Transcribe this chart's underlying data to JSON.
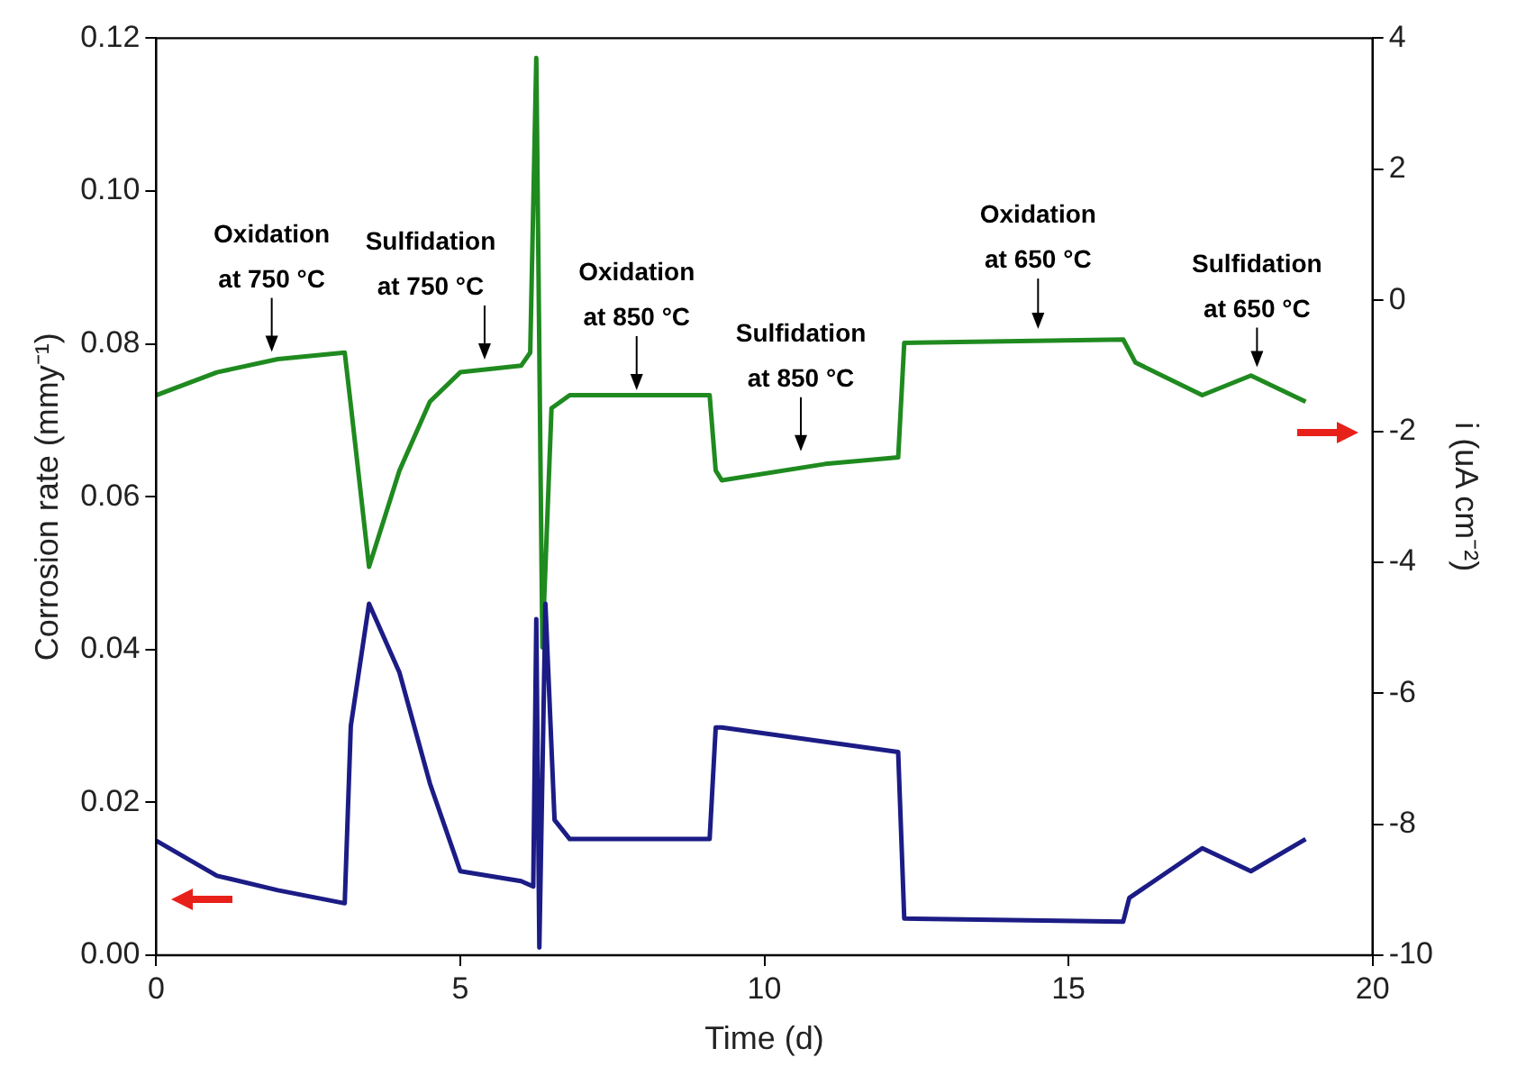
{
  "chart_data": {
    "type": "line",
    "xlabel": "Time (d)",
    "ylabel": "Corrosion rate (mmy⁻¹)",
    "y2label": "i (uA cm⁻²)",
    "xlim": [
      0,
      20
    ],
    "xticks": [
      0,
      5,
      10,
      15,
      20
    ],
    "ylim": [
      0,
      0.12
    ],
    "yticks": [
      {
        "value": 0,
        "label": "0.00"
      },
      {
        "value": 0.02,
        "label": "0.02"
      },
      {
        "value": 0.04,
        "label": "0.04"
      },
      {
        "value": 0.06,
        "label": "0.06"
      },
      {
        "value": 0.08,
        "label": "0.08"
      },
      {
        "value": 0.1,
        "label": "0.10"
      },
      {
        "value": 0.12,
        "label": "0.12"
      }
    ],
    "y2lim": [
      -10,
      4
    ],
    "y2ticks": [
      -10,
      -8,
      -6,
      -4,
      -2,
      0,
      2,
      4
    ],
    "grid": false,
    "legend": false,
    "marker": "none",
    "line_style": "solid",
    "series": [
      {
        "color": "#1c1c86",
        "x": [
          0,
          1,
          2,
          3.1,
          3.2,
          3.5,
          4,
          4.5,
          5,
          6,
          6.2,
          6.25,
          6.3,
          6.4,
          6.55,
          6.8,
          9.1,
          9.2,
          9.3,
          12.2,
          12.3,
          15.9,
          16,
          17.2,
          18,
          18.9
        ],
        "values": [
          0.015,
          0.0104,
          0.0085,
          0.0068,
          0.03,
          0.046,
          0.037,
          0.0225,
          0.011,
          0.0097,
          0.009,
          0.044,
          0.001,
          0.046,
          0.0177,
          0.0152,
          0.0152,
          0.0298,
          0.0298,
          0.0266,
          0.0048,
          0.0044,
          0.0075,
          0.014,
          0.011,
          0.0152
        ]
      },
      {
        "color": "#1f8a1f",
        "axis": "y2",
        "x": [
          0,
          1,
          2,
          3.1,
          3.2,
          3.5,
          4,
          4.5,
          5,
          6,
          6.15,
          6.25,
          6.35,
          6.5,
          6.8,
          9.1,
          9.2,
          9.3,
          11,
          12.2,
          12.3,
          15.9,
          16.1,
          17.2,
          18,
          18.9
        ],
        "values": [
          -1.45,
          -1.1,
          -0.9,
          -0.8,
          -1.6,
          -4.07,
          -2.6,
          -1.55,
          -1.1,
          -1.0,
          -0.8,
          3.7,
          -5.3,
          -1.65,
          -1.45,
          -1.45,
          -2.6,
          -2.75,
          -2.5,
          -2.4,
          -0.65,
          -0.6,
          -0.95,
          -1.45,
          -1.15,
          -1.55
        ]
      }
    ],
    "annotations": [
      {
        "text": "Oxidation\nat 750 °C",
        "x": 1.9,
        "y": 0.078
      },
      {
        "text": "Sulfidation\nat 750 °C",
        "x": 5.4,
        "y": 0.077
      },
      {
        "text": "Oxidation\nat 850 °C",
        "x": 7.9,
        "y": 0.073
      },
      {
        "text": "Sulfidation\nat 850 °C",
        "x": 10.6,
        "y": 0.065
      },
      {
        "text": "Oxidation\nat 650 °C",
        "x": 14.5,
        "y": 0.081
      },
      {
        "text": "Sulfidation\nat 650 °C",
        "x": 18.1,
        "y": 0.076
      }
    ]
  }
}
